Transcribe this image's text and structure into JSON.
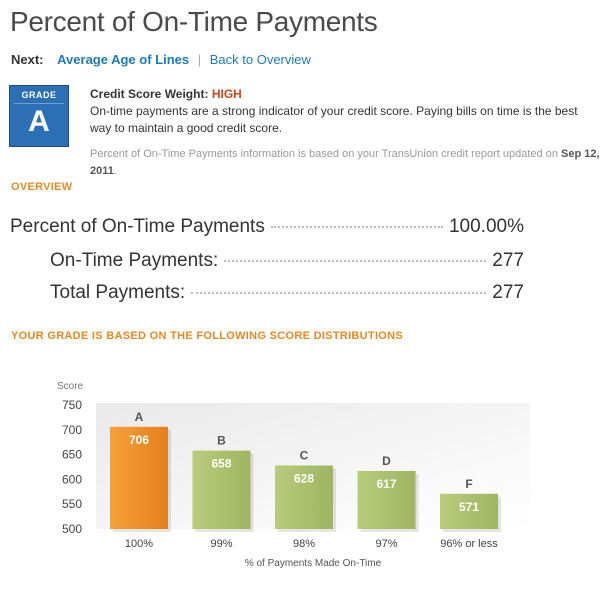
{
  "page": {
    "title": "Percent of On-Time Payments",
    "next_label": "Next:",
    "next_link": "Average Age of Lines",
    "separator": "|",
    "back_link": "Back to Overview"
  },
  "grade": {
    "label": "GRADE",
    "letter": "A",
    "weight_label": "Credit Score Weight:",
    "weight_value": "HIGH",
    "weight_color": "#d4441a",
    "description": "On-time payments are a strong indicator of your credit score. Paying bills on time is the best way to maintain a good credit score.",
    "source_text": "Percent of On-Time Payments information is based on your TransUnion credit report updated on",
    "source_date": "Sep 12, 2011",
    "source_end": "."
  },
  "overview": {
    "heading": "OVERVIEW",
    "stats": [
      {
        "label": "Percent of On-Time Payments",
        "value": "100.00%"
      },
      {
        "label": "On-Time Payments:",
        "value": "277"
      },
      {
        "label": "Total Payments:",
        "value": "277"
      }
    ]
  },
  "distribution": {
    "heading": "YOUR GRADE IS BASED ON THE FOLLOWING SCORE DISTRIBUTIONS"
  },
  "chart_data": {
    "type": "bar",
    "ylabel": "Score",
    "xlabel": "% of Payments Made On-Time",
    "ylim": [
      500,
      750
    ],
    "yticks": [
      500,
      550,
      600,
      650,
      700,
      750
    ],
    "categories": [
      "100%",
      "99%",
      "98%",
      "97%",
      "96% or less"
    ],
    "grades": [
      "A",
      "B",
      "C",
      "D",
      "F"
    ],
    "values": [
      706,
      658,
      628,
      617,
      571
    ],
    "highlight_index": 0,
    "colors": {
      "highlight": "#f0902a",
      "normal": "#a9bf6c"
    }
  }
}
